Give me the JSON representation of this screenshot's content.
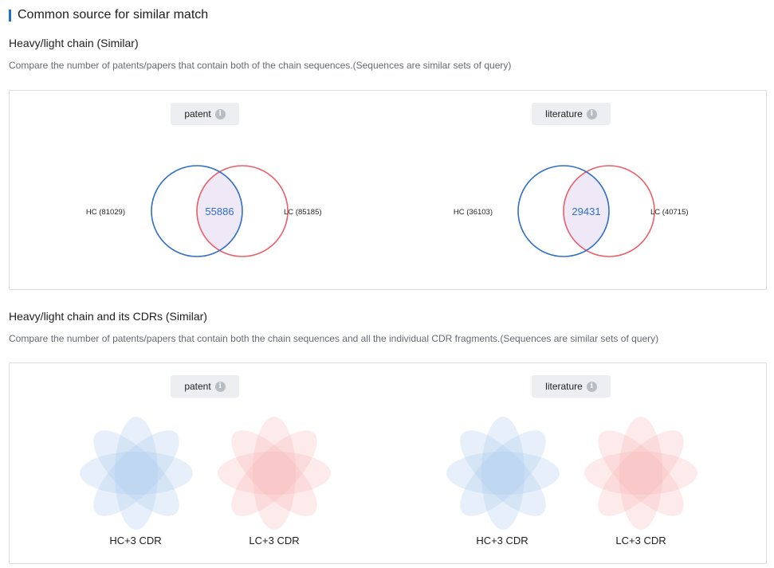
{
  "section": {
    "title": "Common source for similar match"
  },
  "block1": {
    "title": "Heavy/light chain (Similar)",
    "description": "Compare the number of patents/papers that contain both of the chain sequences.(Sequences are similar sets of query)",
    "venns": [
      {
        "tab": "patent",
        "hc_label": "HC (81029)",
        "lc_label": "LC (85185)",
        "intersection": "55886"
      },
      {
        "tab": "literature",
        "hc_label": "HC (36103)",
        "lc_label": "LC (40715)",
        "intersection": "29431"
      }
    ]
  },
  "block2": {
    "title": "Heavy/light chain and its CDRs (Similar)",
    "description": "Compare the number of patents/papers that contain both the chain sequences and all the individual CDR fragments.(Sequences are similar sets of query)",
    "groups": [
      {
        "tab": "patent",
        "hc_label": "HC+3 CDR",
        "lc_label": "LC+3 CDR"
      },
      {
        "tab": "literature",
        "hc_label": "HC+3 CDR",
        "lc_label": "LC+3 CDR"
      }
    ]
  },
  "icons": {
    "info": "info-icon"
  },
  "colors": {
    "accent": "#1f6fc5",
    "hc_circle": "#2e6fc8",
    "lc_circle": "#ea5f68",
    "intersection_fill": "#efe8f7",
    "hc_petal": "#a9c8ee",
    "lc_petal": "#f8b3b3"
  }
}
